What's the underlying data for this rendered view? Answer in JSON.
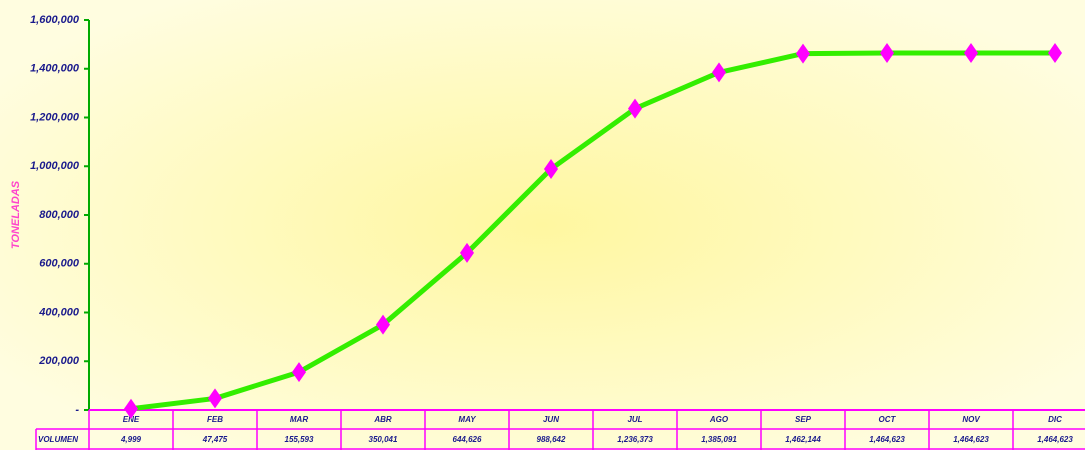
{
  "chart_data": {
    "type": "line",
    "y_label": "TONELADAS",
    "table_row_label": "VOLUMEN",
    "categories": [
      "ENE",
      "FEB",
      "MAR",
      "ABR",
      "MAY",
      "JUN",
      "JUL",
      "AGO",
      "SEP",
      "OCT",
      "NOV",
      "DIC"
    ],
    "series": [
      {
        "color": "#33ee00",
        "marker_color": "#ff00ff",
        "values": [
          4999,
          47475,
          155593,
          350041,
          644626,
          988642,
          1236373,
          1385091,
          1462144,
          1464623,
          1464623,
          1464623
        ],
        "value_labels": [
          "4,999",
          "47,475",
          "155,593",
          "350,041",
          "644,626",
          "988,642",
          "1,236,373",
          "1,385,091",
          "1,462,144",
          "1,464,623",
          "1,464,623",
          "1,464,623"
        ]
      }
    ],
    "ylim": [
      0,
      1600000
    ],
    "yticks": [
      {
        "value": 0,
        "label": "-"
      },
      {
        "value": 200000,
        "label": "200,000"
      },
      {
        "value": 400000,
        "label": "400,000"
      },
      {
        "value": 600000,
        "label": "600,000"
      },
      {
        "value": 800000,
        "label": "800,000"
      },
      {
        "value": 1000000,
        "label": "1,000,000"
      },
      {
        "value": 1200000,
        "label": "1,200,000"
      },
      {
        "value": 1400000,
        "label": "1,400,000"
      },
      {
        "value": 1600000,
        "label": "1,600,000"
      }
    ],
    "grid": false
  }
}
